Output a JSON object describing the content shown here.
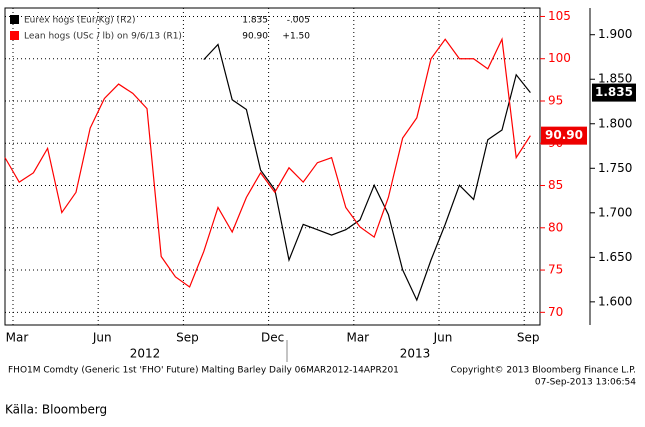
{
  "chart_data": {
    "type": "line",
    "categories": [
      "Mar",
      null,
      null,
      null,
      null,
      null,
      "Jun",
      null,
      null,
      null,
      null,
      null,
      "Sep",
      null,
      null,
      null,
      null,
      null,
      "Dec",
      null,
      null,
      null,
      null,
      null,
      "Mar",
      null,
      null,
      null,
      null,
      null,
      "Jun",
      null,
      null,
      null,
      null,
      null,
      "Sep",
      null
    ],
    "year_labels": [
      "2012",
      "2013"
    ],
    "series": [
      {
        "name": "Eurex hogs (Eur/Kg) (R2)",
        "color": "#000000",
        "axis": "y2",
        "last_label": "1.835",
        "change_label": "-.005",
        "values": [
          null,
          null,
          null,
          null,
          null,
          null,
          null,
          null,
          null,
          null,
          null,
          null,
          null,
          null,
          1.872,
          1.889,
          1.827,
          1.816,
          1.748,
          1.726,
          1.647,
          1.687,
          1.681,
          1.675,
          1.681,
          1.692,
          1.731,
          1.698,
          1.636,
          1.602,
          1.647,
          1.687,
          1.731,
          1.715,
          1.782,
          1.793,
          1.855,
          1.835
        ]
      },
      {
        "name": "Lean hogs (USc / lb) on 9/6/13 (R1)",
        "color": "#ff0000",
        "last_label": "90.90",
        "change_label": "+1.50",
        "values": [
          88.3,
          85.4,
          86.5,
          89.4,
          81.8,
          84.2,
          91.8,
          95.3,
          97,
          95.9,
          94.1,
          76.6,
          74.2,
          73,
          77.2,
          82.4,
          79.5,
          83.6,
          86.5,
          84.2,
          87.1,
          85.4,
          87.7,
          88.3,
          82.4,
          80.1,
          78.9,
          83.6,
          90.6,
          93,
          100,
          102.3,
          100,
          100,
          98.8,
          102.3,
          88.3,
          90.9
        ]
      }
    ],
    "ylim": [
      68.5,
      106
    ],
    "yticks": [
      70,
      75,
      80,
      85,
      90,
      95,
      100,
      105
    ],
    "y2lim": [
      1.574,
      1.93
    ],
    "y2ticks": [
      {
        "value": 1.6,
        "label": "1.600"
      },
      {
        "value": 1.65,
        "label": "1.650"
      },
      {
        "value": 1.7,
        "label": "1.700"
      },
      {
        "value": 1.75,
        "label": "1.750"
      },
      {
        "value": 1.8,
        "label": "1.800"
      },
      {
        "value": 1.85,
        "label": "1.850"
      },
      {
        "value": 1.9,
        "label": "1.900"
      }
    ],
    "grid": true,
    "footer_left": "FHO1M Comdty (Generic 1st 'FHO' Future) Malting Barley  Daily 06MAR2012-14APR201",
    "footer_right": "Copyright© 2013 Bloomberg Finance L.P.",
    "footer_date": "07-Sep-2013 13:06:54",
    "source": "Källa: Bloomberg"
  }
}
